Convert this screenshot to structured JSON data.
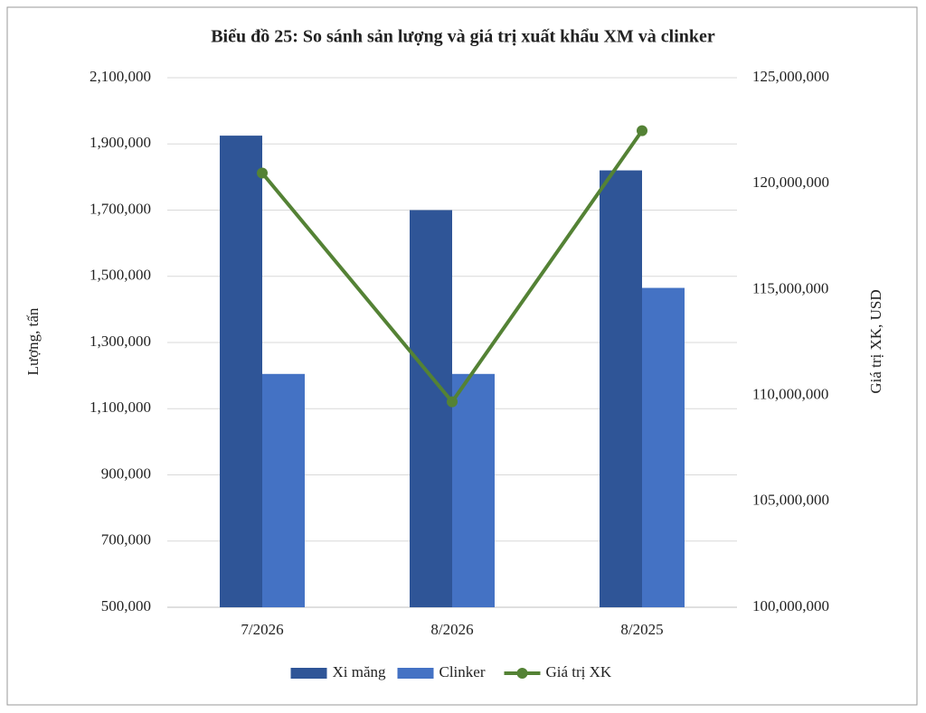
{
  "chart_data": {
    "type": "bar",
    "title": "Biểu đồ 25: So sánh sản lượng và giá trị xuất khẩu XM và clinker",
    "y_label": "Lượng, tấn",
    "y2_label": "Giá trị XK, USD",
    "categories": [
      "7/2026",
      "8/2026",
      "8/2025"
    ],
    "series": [
      {
        "name": "Xi măng",
        "type": "bar",
        "color": "#2f5597",
        "values": [
          1925000,
          1700000,
          1820000
        ]
      },
      {
        "name": "Clinker",
        "type": "bar",
        "color": "#4472c4",
        "values": [
          1205000,
          1205000,
          1465000
        ]
      },
      {
        "name": "Giá trị XK",
        "type": "line",
        "axis": "y2",
        "color": "#548235",
        "values": [
          120500000,
          109700000,
          122500000
        ]
      }
    ],
    "ylim": [
      500000,
      2100000
    ],
    "yticks": [
      {
        "value": 500000,
        "label": "500,000"
      },
      {
        "value": 700000,
        "label": "700,000"
      },
      {
        "value": 900000,
        "label": "900,000"
      },
      {
        "value": 1100000,
        "label": "1,100,000"
      },
      {
        "value": 1300000,
        "label": "1,300,000"
      },
      {
        "value": 1500000,
        "label": "1,500,000"
      },
      {
        "value": 1700000,
        "label": "1,700,000"
      },
      {
        "value": 1900000,
        "label": "1,900,000"
      },
      {
        "value": 2100000,
        "label": "2,100,000"
      }
    ],
    "y2lim": [
      100000000,
      125000000
    ],
    "y2ticks": [
      {
        "value": 100000000,
        "label": "100,000,000"
      },
      {
        "value": 105000000,
        "label": "105,000,000"
      },
      {
        "value": 110000000,
        "label": "110,000,000"
      },
      {
        "value": 115000000,
        "label": "115,000,000"
      },
      {
        "value": 120000000,
        "label": "120,000,000"
      },
      {
        "value": 125000000,
        "label": "125,000,000"
      }
    ],
    "grid": true,
    "legend": "bottom"
  }
}
